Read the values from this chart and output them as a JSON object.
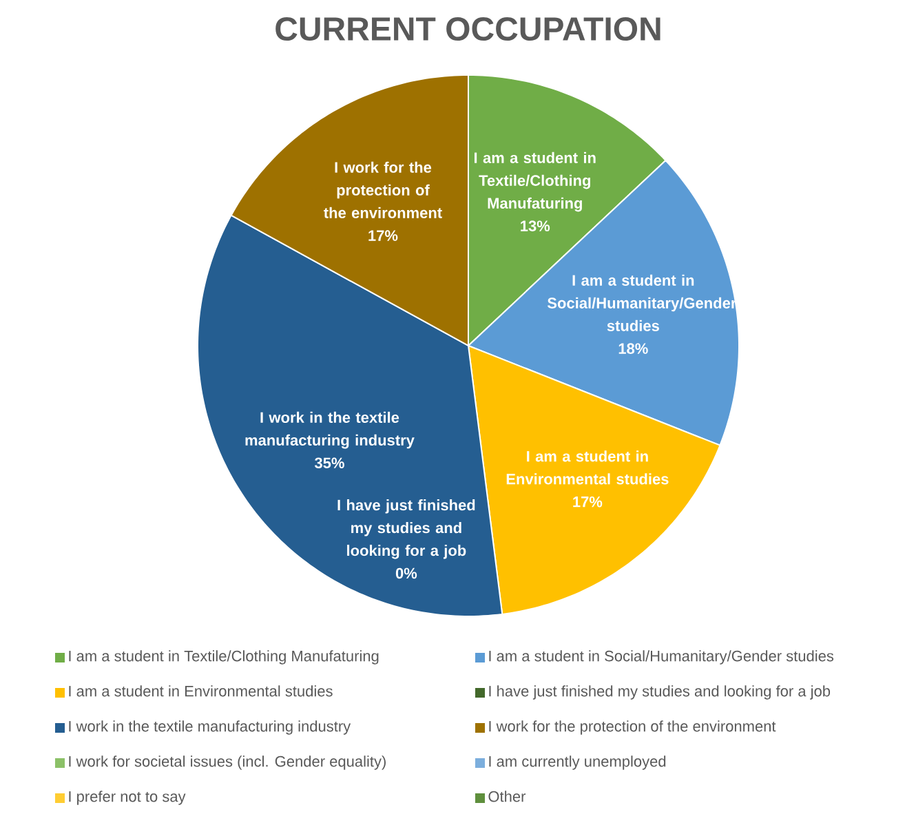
{
  "chart_data": {
    "type": "pie",
    "title": "CURRENT OCCUPATION",
    "categories": [
      "I am a student in Textile/Clothing Manufaturing",
      "I am a student in Social/Humanitary/Gender studies",
      "I am a student in Environmental studies",
      "I have just finished my studies and looking for a job",
      "I work in the textile manufacturing industry",
      "I work for the protection of the environment",
      "I work for societal issues (incl. Gender equality)",
      "I am currently unemployed",
      "I prefer not to say",
      "Other"
    ],
    "values": [
      13,
      18,
      17,
      0,
      35,
      17,
      0,
      0,
      0,
      0
    ],
    "value_labels": [
      "13%",
      "18%",
      "17%",
      "0%",
      "35%",
      "17%",
      null,
      null,
      null,
      null
    ],
    "colors": [
      "#70ad47",
      "#5b9bd5",
      "#ffc000",
      "#43682b",
      "#255e91",
      "#9e7100",
      "#8cc168",
      "#7caedd",
      "#ffcd33",
      "#5f8f3d"
    ],
    "legend": "bottom"
  }
}
